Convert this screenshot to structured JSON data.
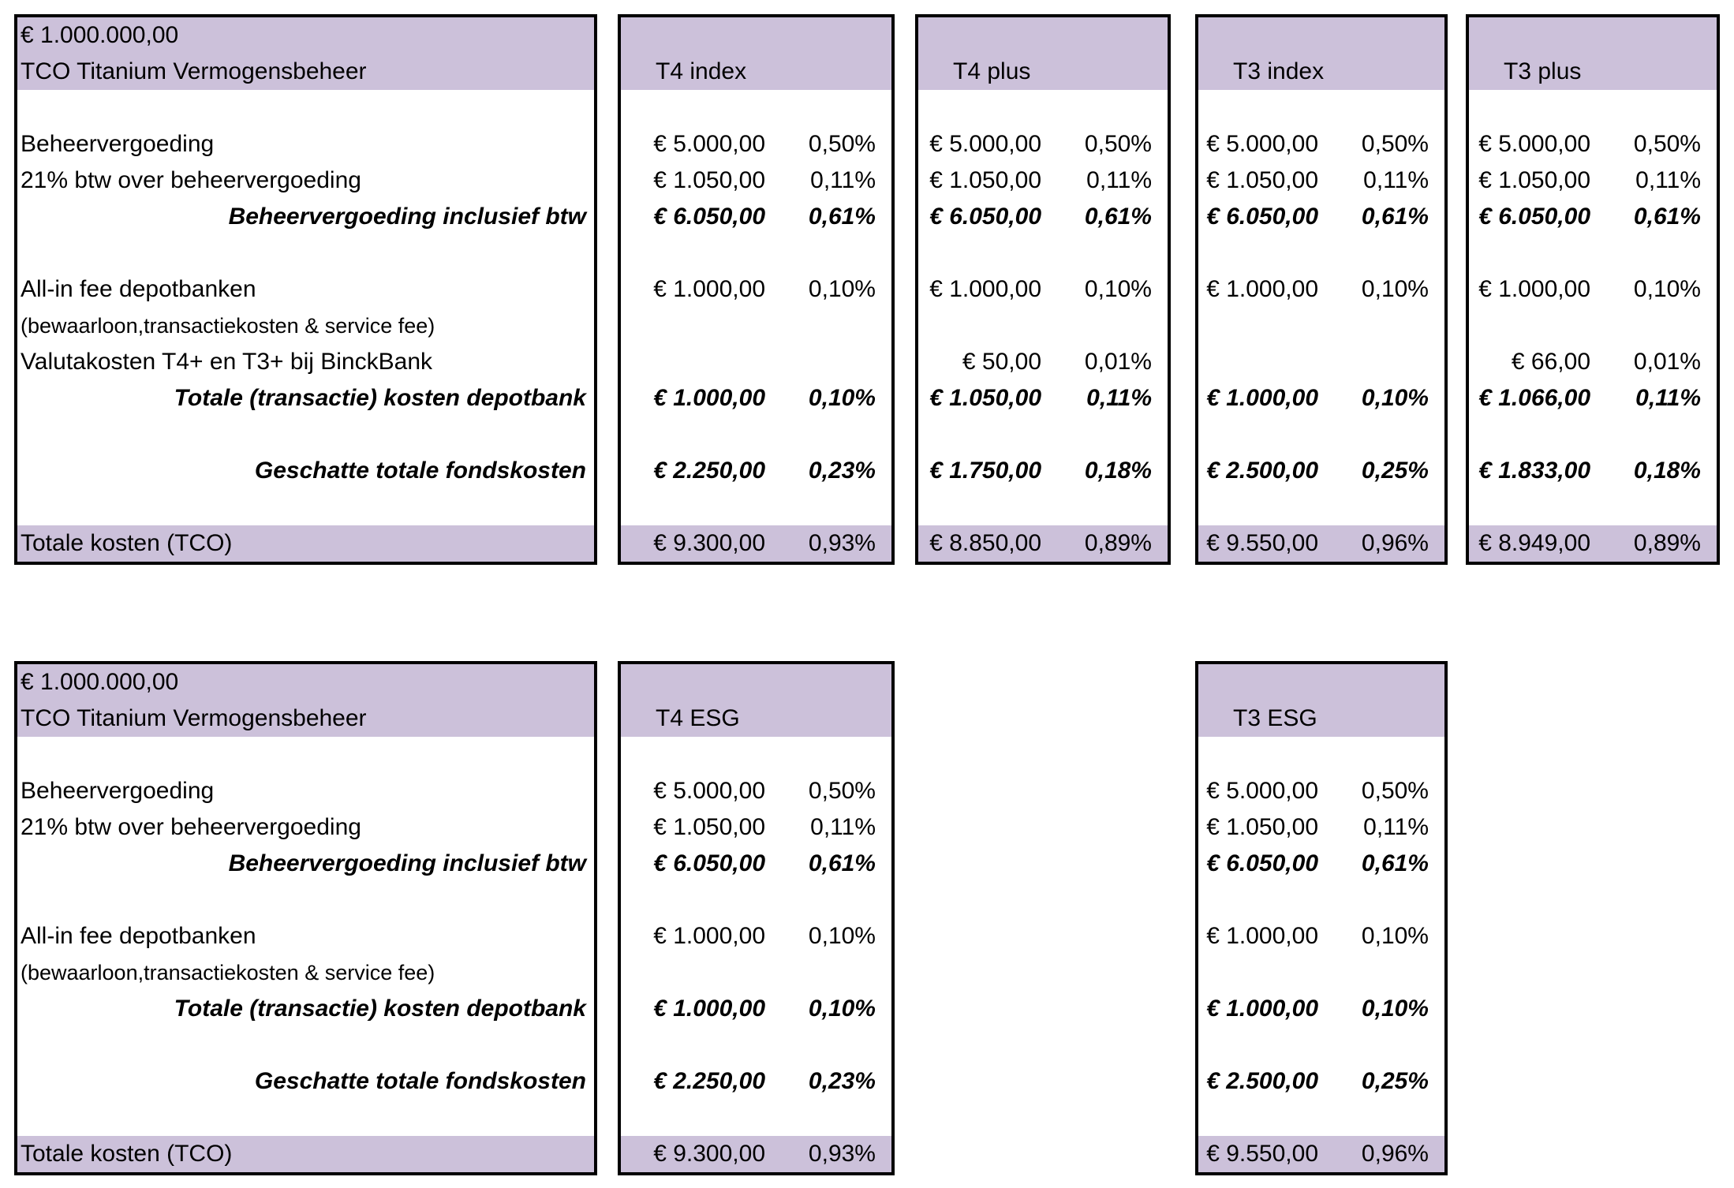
{
  "colors": {
    "band": "#ccc1da",
    "border": "#000000",
    "background": "#ffffff"
  },
  "tables": [
    {
      "labels": {
        "amount": "€ 1.000.000,00",
        "title": "TCO Titanium Vermogensbeheer",
        "rows": [
          {
            "text": "",
            "style": "blank"
          },
          {
            "text": "Beheervergoeding",
            "style": "normal"
          },
          {
            "text": "21% btw over beheervergoeding",
            "style": "normal"
          },
          {
            "text": "Beheervergoeding inclusief btw",
            "style": "total"
          },
          {
            "text": "",
            "style": "blank"
          },
          {
            "text": "All-in fee depotbanken",
            "style": "normal"
          },
          {
            "text": "(bewaarloon,transactiekosten & service fee)",
            "style": "small"
          },
          {
            "text": "Valutakosten T4+ en T3+ bij BinckBank",
            "style": "normal"
          },
          {
            "text": "Totale (transactie) kosten depotbank",
            "style": "total"
          },
          {
            "text": "",
            "style": "blank"
          },
          {
            "text": "Geschatte totale fondskosten",
            "style": "total"
          },
          {
            "text": "",
            "style": "blank"
          }
        ],
        "footer": "Totale kosten (TCO)"
      },
      "products": [
        {
          "name": "T4 index",
          "rows": [
            [
              "",
              ""
            ],
            [
              "€ 5.000,00",
              "0,50%"
            ],
            [
              "€ 1.050,00",
              "0,11%"
            ],
            [
              "€ 6.050,00",
              "0,61%"
            ],
            [
              "",
              ""
            ],
            [
              "€ 1.000,00",
              "0,10%"
            ],
            [
              "",
              ""
            ],
            [
              "",
              ""
            ],
            [
              "€ 1.000,00",
              "0,10%"
            ],
            [
              "",
              ""
            ],
            [
              "€ 2.250,00",
              "0,23%"
            ],
            [
              "",
              ""
            ]
          ],
          "footer": [
            "€ 9.300,00",
            "0,93%"
          ]
        },
        {
          "name": "T4 plus",
          "rows": [
            [
              "",
              ""
            ],
            [
              "€ 5.000,00",
              "0,50%"
            ],
            [
              "€ 1.050,00",
              "0,11%"
            ],
            [
              "€ 6.050,00",
              "0,61%"
            ],
            [
              "",
              ""
            ],
            [
              "€ 1.000,00",
              "0,10%"
            ],
            [
              "",
              ""
            ],
            [
              "€ 50,00",
              "0,01%"
            ],
            [
              "€ 1.050,00",
              "0,11%"
            ],
            [
              "",
              ""
            ],
            [
              "€ 1.750,00",
              "0,18%"
            ],
            [
              "",
              ""
            ]
          ],
          "footer": [
            "€ 8.850,00",
            "0,89%"
          ]
        },
        {
          "name": "T3 index",
          "rows": [
            [
              "",
              ""
            ],
            [
              "€ 5.000,00",
              "0,50%"
            ],
            [
              "€ 1.050,00",
              "0,11%"
            ],
            [
              "€ 6.050,00",
              "0,61%"
            ],
            [
              "",
              ""
            ],
            [
              "€ 1.000,00",
              "0,10%"
            ],
            [
              "",
              ""
            ],
            [
              "",
              ""
            ],
            [
              "€ 1.000,00",
              "0,10%"
            ],
            [
              "",
              ""
            ],
            [
              "€ 2.500,00",
              "0,25%"
            ],
            [
              "",
              ""
            ]
          ],
          "footer": [
            "€ 9.550,00",
            "0,96%"
          ]
        },
        {
          "name": "T3 plus",
          "rows": [
            [
              "",
              ""
            ],
            [
              "€ 5.000,00",
              "0,50%"
            ],
            [
              "€ 1.050,00",
              "0,11%"
            ],
            [
              "€ 6.050,00",
              "0,61%"
            ],
            [
              "",
              ""
            ],
            [
              "€ 1.000,00",
              "0,10%"
            ],
            [
              "",
              ""
            ],
            [
              "€ 66,00",
              "0,01%"
            ],
            [
              "€ 1.066,00",
              "0,11%"
            ],
            [
              "",
              ""
            ],
            [
              "€ 1.833,00",
              "0,18%"
            ],
            [
              "",
              ""
            ]
          ],
          "footer": [
            "€ 8.949,00",
            "0,89%"
          ]
        }
      ]
    },
    {
      "labels": {
        "amount": "€ 1.000.000,00",
        "title": "TCO Titanium Vermogensbeheer",
        "rows": [
          {
            "text": "",
            "style": "blank"
          },
          {
            "text": "Beheervergoeding",
            "style": "normal"
          },
          {
            "text": "21% btw over beheervergoeding",
            "style": "normal"
          },
          {
            "text": "Beheervergoeding inclusief btw",
            "style": "total"
          },
          {
            "text": "",
            "style": "blank"
          },
          {
            "text": "All-in fee depotbanken",
            "style": "normal"
          },
          {
            "text": "(bewaarloon,transactiekosten & service fee)",
            "style": "small"
          },
          {
            "text": "Totale (transactie) kosten depotbank",
            "style": "total"
          },
          {
            "text": "",
            "style": "blank"
          },
          {
            "text": "Geschatte totale fondskosten",
            "style": "total"
          },
          {
            "text": "",
            "style": "blank"
          }
        ],
        "footer": "Totale kosten (TCO)"
      },
      "products": [
        {
          "name": "T4 ESG",
          "rows": [
            [
              "",
              ""
            ],
            [
              "€ 5.000,00",
              "0,50%"
            ],
            [
              "€ 1.050,00",
              "0,11%"
            ],
            [
              "€ 6.050,00",
              "0,61%"
            ],
            [
              "",
              ""
            ],
            [
              "€ 1.000,00",
              "0,10%"
            ],
            [
              "",
              ""
            ],
            [
              "€ 1.000,00",
              "0,10%"
            ],
            [
              "",
              ""
            ],
            [
              "€ 2.250,00",
              "0,23%"
            ],
            [
              "",
              ""
            ]
          ],
          "footer": [
            "€ 9.300,00",
            "0,93%"
          ]
        },
        {
          "name": "T3 ESG",
          "rows": [
            [
              "",
              ""
            ],
            [
              "€ 5.000,00",
              "0,50%"
            ],
            [
              "€ 1.050,00",
              "0,11%"
            ],
            [
              "€ 6.050,00",
              "0,61%"
            ],
            [
              "",
              ""
            ],
            [
              "€ 1.000,00",
              "0,10%"
            ],
            [
              "",
              ""
            ],
            [
              "€ 1.000,00",
              "0,10%"
            ],
            [
              "",
              ""
            ],
            [
              "€ 2.500,00",
              "0,25%"
            ],
            [
              "",
              ""
            ]
          ],
          "footer": [
            "€ 9.550,00",
            "0,96%"
          ]
        }
      ]
    }
  ]
}
